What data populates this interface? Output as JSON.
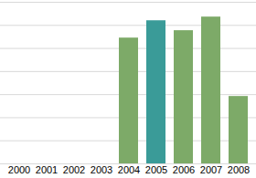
{
  "chart_data": {
    "type": "bar",
    "categories": [
      "2000",
      "2001",
      "2002",
      "2003",
      "2004",
      "2005",
      "2006",
      "2007",
      "2008"
    ],
    "values": [
      null,
      null,
      null,
      null,
      5.45,
      6.2,
      5.77,
      6.36,
      2.92
    ],
    "colors": [
      "#7daa68",
      "#7daa68",
      "#7daa68",
      "#7daa68",
      "#7daa68",
      "#3a9b98",
      "#7daa68",
      "#7daa68",
      "#7daa68"
    ],
    "ylim": [
      0,
      7
    ],
    "yticks": [
      0,
      1,
      2,
      3,
      4,
      5,
      6,
      7
    ],
    "grid": true,
    "tick_labels": "x"
  }
}
